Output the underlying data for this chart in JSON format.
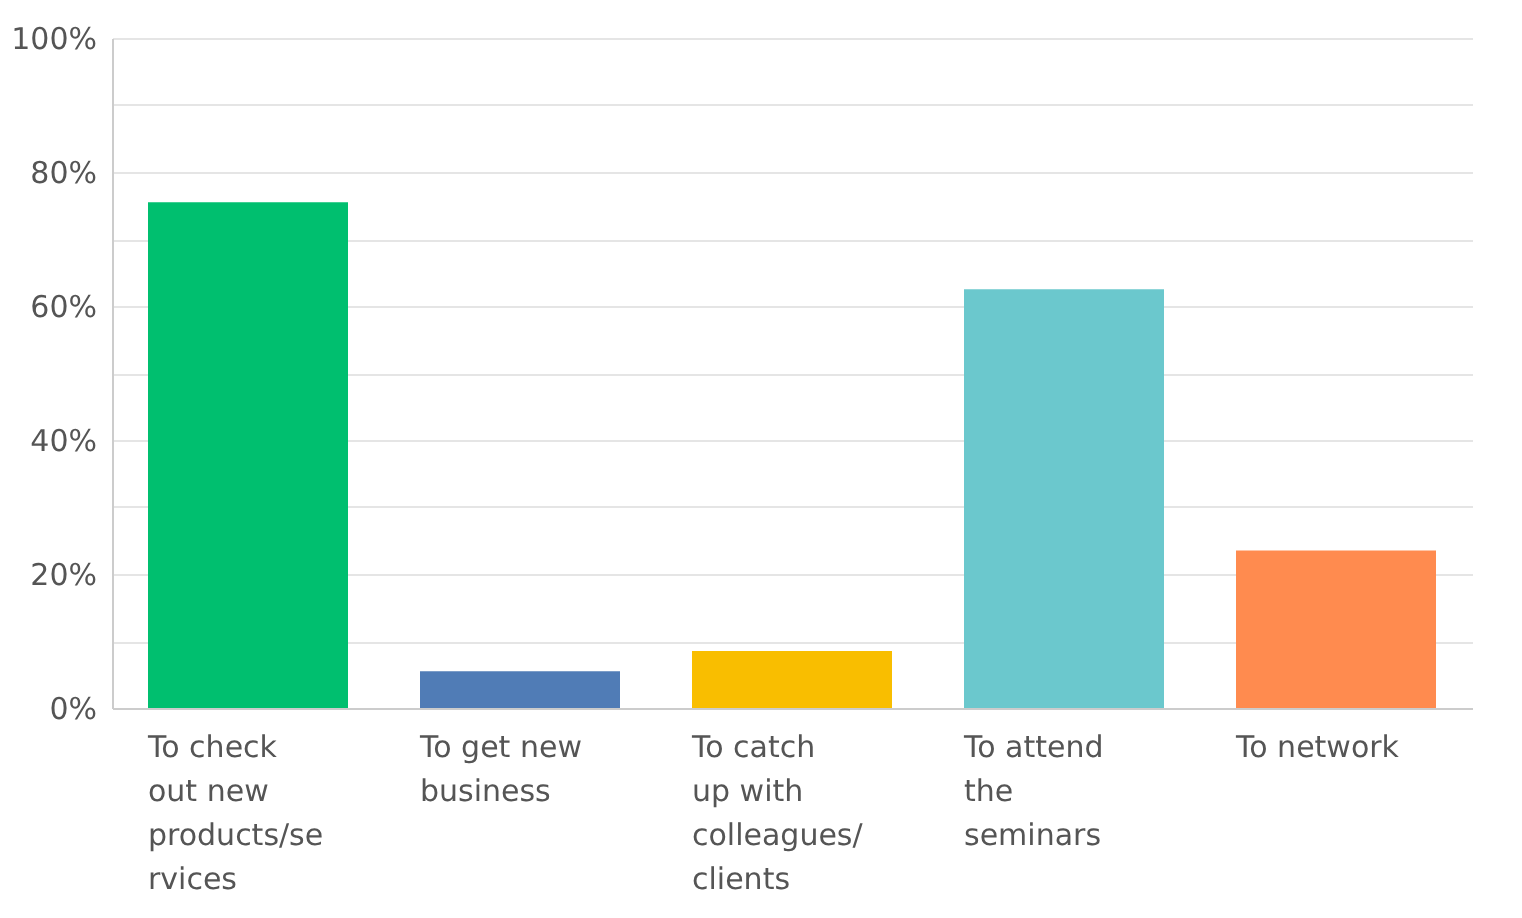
{
  "chart_data": {
    "type": "bar",
    "categories": [
      "To check out new products/services",
      "To get new business",
      "To catch up with colleagues/ clients",
      "To attend the seminars",
      "To network"
    ],
    "values": [
      75.5,
      5.5,
      8.5,
      62.5,
      23.5
    ],
    "colors": [
      "#00bf6f",
      "#507cb6",
      "#f9be00",
      "#6bc8cd",
      "#ff8b4f"
    ],
    "ylim": [
      0,
      100
    ],
    "yticks": [
      {
        "value": 0,
        "label": "0%"
      },
      {
        "value": 10,
        "label": null
      },
      {
        "value": 20,
        "label": "20%"
      },
      {
        "value": 30,
        "label": null
      },
      {
        "value": 40,
        "label": "40%"
      },
      {
        "value": 50,
        "label": null
      },
      {
        "value": 60,
        "label": "60%"
      },
      {
        "value": 70,
        "label": null
      },
      {
        "value": 80,
        "label": "80%"
      },
      {
        "value": 90,
        "label": null
      },
      {
        "value": 100,
        "label": "100%"
      }
    ],
    "grid": true
  }
}
